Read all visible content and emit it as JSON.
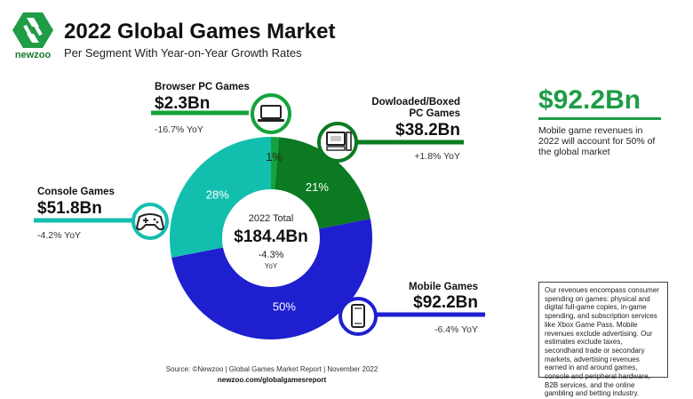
{
  "brand": {
    "logo_text": "newzoo",
    "color": "#1e9c46"
  },
  "header": {
    "title": "2022 Global Games Market",
    "subtitle": "Per Segment With Year-on-Year Growth Rates"
  },
  "center": {
    "total_label": "2022 Total",
    "total_value": "$184.4Bn",
    "growth": "-4.3%",
    "yoy_label": "YoY"
  },
  "segments": {
    "browser_pc": {
      "name": "Browser PC Games",
      "value": "$2.3Bn",
      "yoy": "-16.7% YoY",
      "icon": "laptop-icon"
    },
    "boxed_pc": {
      "name_line1": "Dowloaded/Boxed",
      "name_line2": "PC Games",
      "value": "$38.2Bn",
      "yoy": "+1.8% YoY",
      "icon": "desktop-pc-icon"
    },
    "console": {
      "name": "Console Games",
      "value": "$51.8Bn",
      "yoy": "-4.2% YoY",
      "icon": "gamepad-icon"
    },
    "mobile": {
      "name": "Mobile Games",
      "value": "$92.2Bn",
      "yoy": "-6.4% YoY",
      "icon": "smartphone-icon"
    }
  },
  "highlight": {
    "value": "$92.2Bn",
    "note": "Mobile game revenues in 2022 will account for 50% of the global market"
  },
  "note_box": "Our revenues encompass consumer spending on games: physical and digital full-game copies, in-game spending, and subscription services like Xbox Game Pass. Mobile revenues exclude advertising. Our estimates exclude taxes, secondhand trade or secondary markets, advertising revenues earned in and around games, console and peripheral hardware, B2B services, and the online gambling and betting industry.",
  "footer": {
    "source": "Source: ©Newzoo | Global Games Market Report | November 2022",
    "site": "newzoo.com/globalgamesreport"
  },
  "chart_data": {
    "type": "pie",
    "total": 184.4,
    "unit": "$Bn",
    "slices": [
      {
        "name": "Browser PC Games",
        "value": 2.3,
        "percent_label": "1%",
        "color": "#14a33c"
      },
      {
        "name": "Dowloaded/Boxed PC Games",
        "value": 38.2,
        "percent_label": "21%",
        "color": "#0b7a22"
      },
      {
        "name": "Mobile Games",
        "value": 92.2,
        "percent_label": "50%",
        "color": "#1e1fcf"
      },
      {
        "name": "Console Games",
        "value": 51.8,
        "percent_label": "28%",
        "color": "#12bfae"
      }
    ]
  }
}
